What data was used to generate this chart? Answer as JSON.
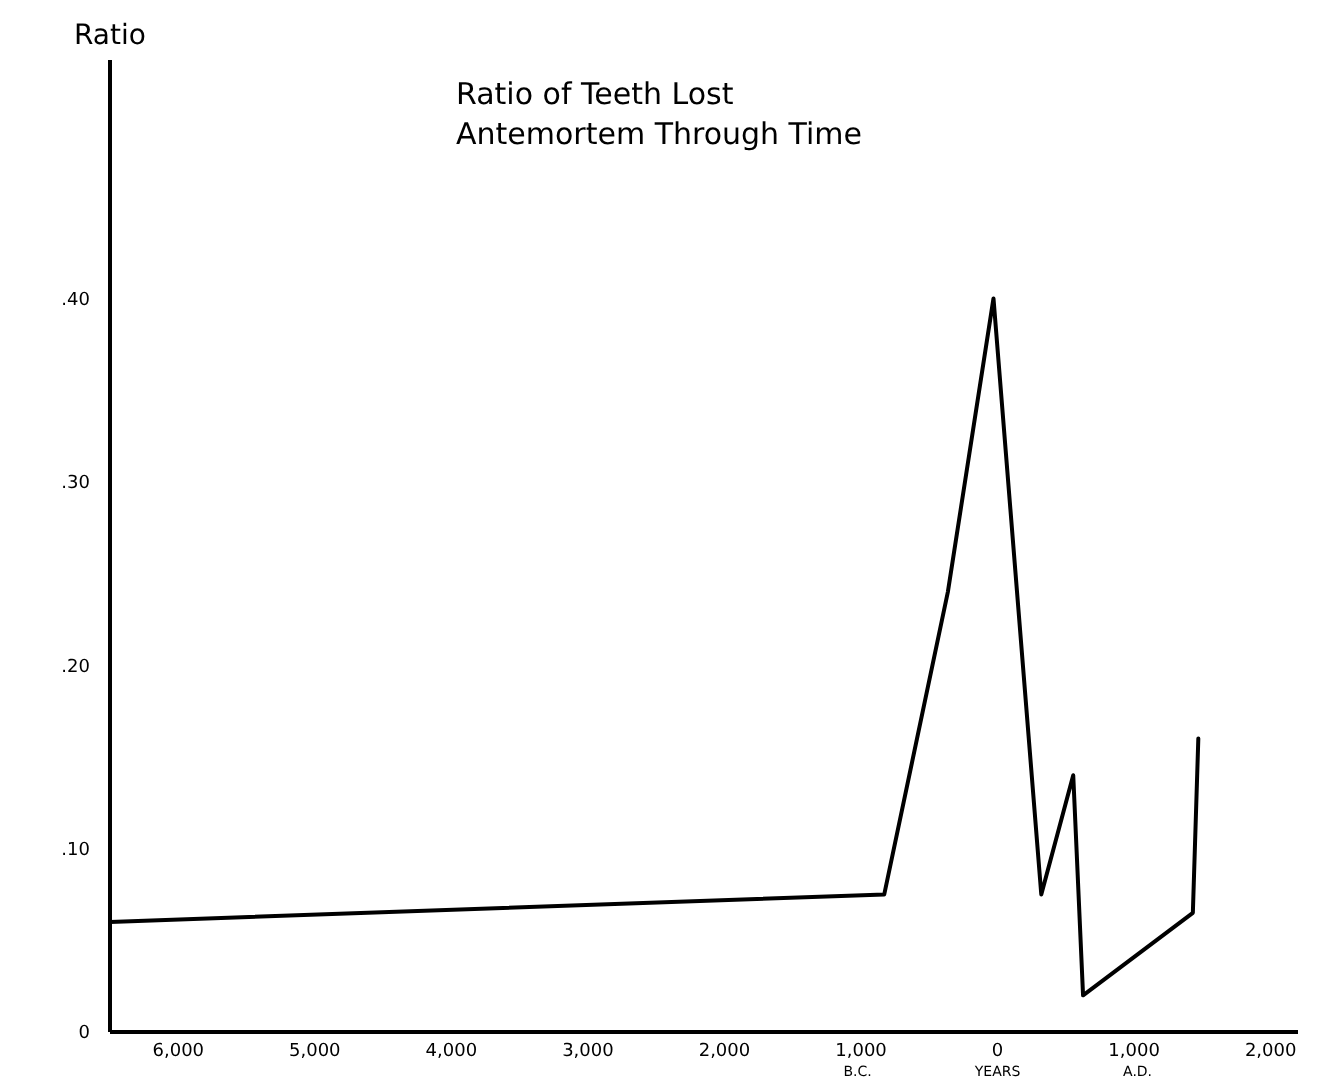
{
  "chart_data": {
    "type": "line",
    "title": "Ratio of Teeth Lost\nAntemortem Through Time",
    "ylabel": "Ratio",
    "xlabel": "YEARS",
    "annotations": [
      "B.C.",
      "A.D."
    ],
    "x": [
      -6500,
      -830,
      -364,
      -30,
      320,
      554,
      626,
      1430,
      1470
    ],
    "series": [
      {
        "color": "#000000",
        "values": [
          0.06,
          0.075,
          0.24,
          0.4,
          0.075,
          0.14,
          0.02,
          0.065,
          0.16
        ]
      }
    ],
    "xlim": [
      -6500,
      2200
    ],
    "xticks": [
      {
        "value": -6000,
        "label": "6,000"
      },
      {
        "value": -5000,
        "label": "5,000"
      },
      {
        "value": -4000,
        "label": "4,000"
      },
      {
        "value": -3000,
        "label": "3,000"
      },
      {
        "value": -2000,
        "label": "2,000"
      },
      {
        "value": -1000,
        "label": "1,000"
      },
      0,
      {
        "value": 1000,
        "label": "1,000"
      },
      {
        "value": 2000,
        "label": "2,000"
      }
    ],
    "ylim": [
      0,
      0.53
    ],
    "yticks": [
      {
        "value": 0,
        "label": "0"
      },
      {
        "value": 0.1,
        "label": ".10"
      },
      {
        "value": 0.2,
        "label": ".20"
      },
      {
        "value": 0.3,
        "label": ".30"
      },
      {
        "value": 0.4,
        "label": ".40"
      }
    ],
    "grid": false,
    "marker": "none",
    "line_style": "solid"
  }
}
